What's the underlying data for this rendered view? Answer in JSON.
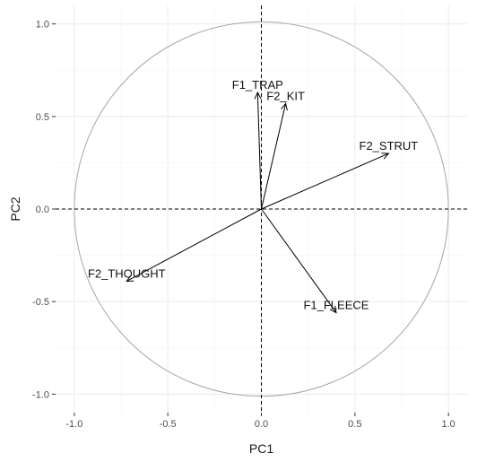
{
  "chart_data": {
    "type": "scatter",
    "subtype": "pca-correlation-circle",
    "title": "",
    "xlabel": "PC1",
    "ylabel": "PC2",
    "xlim": [
      -1.1,
      1.1
    ],
    "ylim": [
      -1.1,
      1.1
    ],
    "x_ticks": [
      -1.0,
      -0.5,
      0.0,
      0.5,
      1.0
    ],
    "y_ticks": [
      -1.0,
      -0.5,
      0.0,
      0.5,
      1.0
    ],
    "x_tick_labels": [
      "-1.0",
      "-0.5",
      "0.0",
      "0.5",
      "1.0"
    ],
    "y_tick_labels": [
      "-1.0",
      "-0.5",
      "0.0",
      "0.5",
      "1.0"
    ],
    "grid": true,
    "unit_circle": true,
    "reference_lines": [
      0,
      0
    ],
    "vectors": [
      {
        "name": "F1_TRAP",
        "x": -0.02,
        "y": 0.63
      },
      {
        "name": "F2_KIT",
        "x": 0.13,
        "y": 0.57
      },
      {
        "name": "F2_STRUT",
        "x": 0.68,
        "y": 0.3
      },
      {
        "name": "F2_THOUGHT",
        "x": -0.72,
        "y": -0.39
      },
      {
        "name": "F1_FLEECE",
        "x": 0.4,
        "y": -0.56
      }
    ],
    "colors": {
      "background": "#ffffff",
      "grid_major": "#ebebeb",
      "grid_minor": "#f5f5f5",
      "circle": "#a6a6a6",
      "arrows": "#000000"
    }
  }
}
